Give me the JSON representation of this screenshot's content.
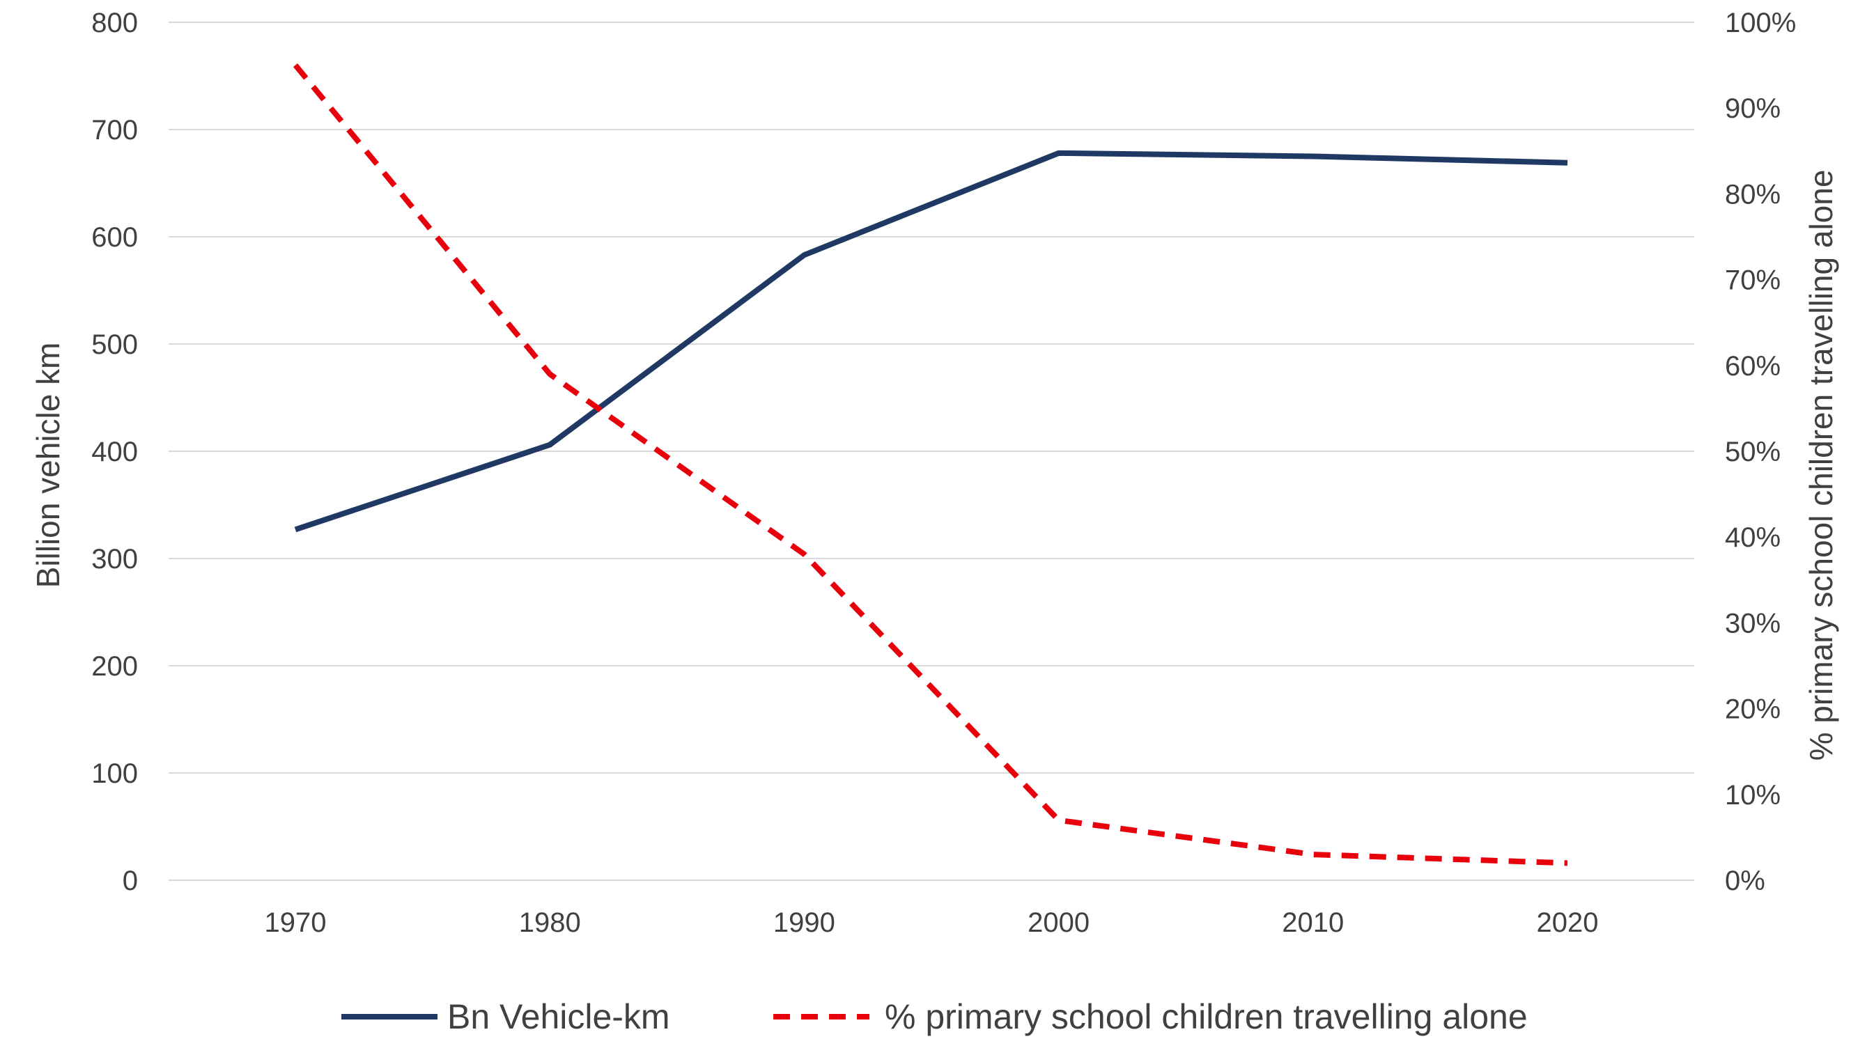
{
  "chart_data": {
    "type": "line",
    "title": "",
    "x": [
      1970,
      1980,
      1990,
      2000,
      2010,
      2020
    ],
    "x_tick_labels": [
      "1970",
      "1980",
      "1990",
      "2000",
      "2010",
      "2020"
    ],
    "y_left": {
      "label": "Billion vehicle km",
      "range": [
        0,
        800
      ],
      "ticks": [
        "0",
        "100",
        "200",
        "300",
        "400",
        "500",
        "600",
        "700",
        "800"
      ]
    },
    "y_right": {
      "label": "% primary school children travelling alone",
      "range": [
        0,
        1
      ],
      "ticks": [
        "0%",
        "10%",
        "20%",
        "30%",
        "40%",
        "50%",
        "60%",
        "70%",
        "80%",
        "90%",
        "100%"
      ]
    },
    "series": [
      {
        "name": "Bn Vehicle-km",
        "axis": "left",
        "style": "solid",
        "color": "#1f3864",
        "values": [
          327,
          406,
          583,
          678,
          675,
          669
        ]
      },
      {
        "name": "% primary school children travelling alone",
        "axis": "right",
        "style": "dashed",
        "color": "#e8000b",
        "values": [
          0.95,
          0.59,
          0.38,
          0.07,
          0.03,
          0.02
        ]
      }
    ],
    "grid": true,
    "legend_position": "bottom"
  }
}
